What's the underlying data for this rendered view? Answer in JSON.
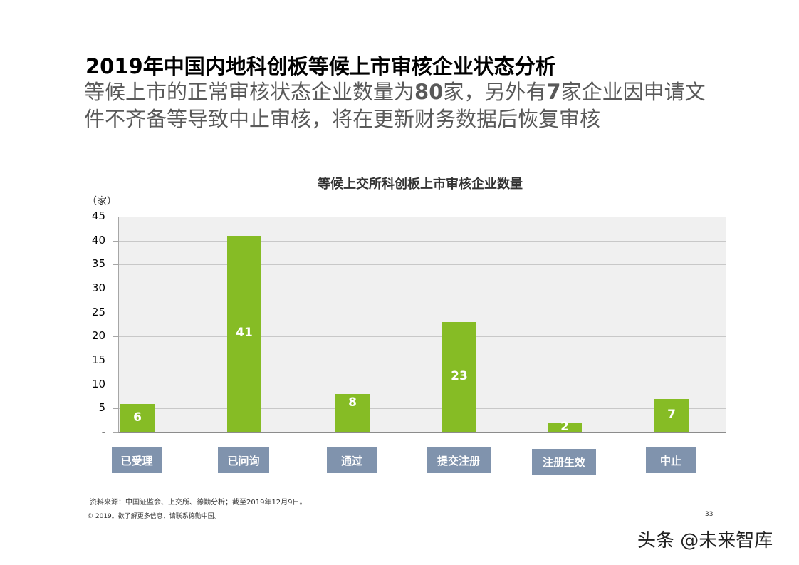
{
  "header": {
    "title": "2019年中国内地科创板等候上市审核企业状态分析",
    "subtitle_parts": [
      "等候上市的正常审核状态企业数量为",
      "80",
      "家，另外有",
      "7",
      "家企业因申请文件不齐备等导致中止审核，将在更新财务数据后恢复审核"
    ]
  },
  "chart_data": {
    "type": "bar",
    "title": "等候上交所科创板上市审核企业数量",
    "ylabel": "（家）",
    "xlabel": "",
    "categories": [
      "已受理",
      "已问询",
      "通过",
      "提交注册",
      "注册生效",
      "中止"
    ],
    "values": [
      6,
      41,
      8,
      23,
      2,
      7
    ],
    "ylim": [
      0,
      45
    ],
    "yticks": [
      "-",
      "5",
      "10",
      "15",
      "20",
      "25",
      "30",
      "35",
      "40",
      "45"
    ],
    "grid": true,
    "legend": "none",
    "bar_color": "#86bc25",
    "category_box_color": "#8093ad",
    "plot_background": "#f0f0f0"
  },
  "footer": {
    "source": "资料来源：中国证监会、上交所、德勤分析；截至2019年12月9日。",
    "copyright": "© 2019。欲了解更多信息，请联系德勤中国。",
    "page_number": "33",
    "watermark": "头条 @未来智库"
  }
}
